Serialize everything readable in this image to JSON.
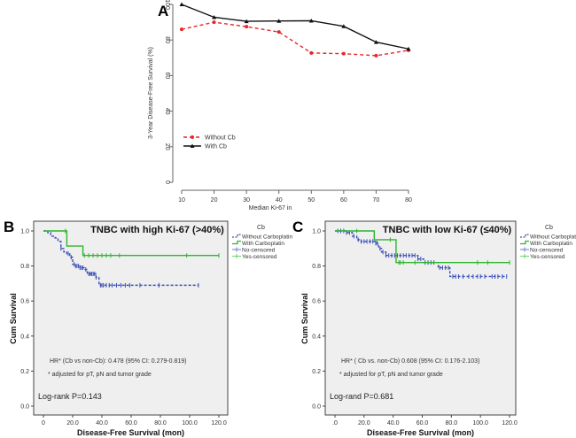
{
  "chart_data": [
    {
      "type": "line",
      "panel": "A",
      "xlabel": "Median Ki-67 in",
      "ylabel": "3-Year Disease-Free Survival (%)",
      "x": [
        10,
        20,
        30,
        40,
        50,
        60,
        70,
        80
      ],
      "xlim": [
        10,
        80
      ],
      "ylim": [
        0,
        100
      ],
      "yticks": [
        0,
        20,
        40,
        60,
        80,
        100
      ],
      "legend": "left-middle",
      "grid": false,
      "series": [
        {
          "name": "Without Cb",
          "color": "#e8262a",
          "style": "dashed",
          "marker": "circle",
          "values": [
            86,
            90,
            87.5,
            84.5,
            72.7,
            72.3,
            71.2,
            74.2
          ]
        },
        {
          "name": "With Cb",
          "color": "#111111",
          "style": "solid",
          "marker": "triangle",
          "values": [
            100,
            92.8,
            90.5,
            90.7,
            90.8,
            87.7,
            78.8,
            75
          ]
        }
      ]
    },
    {
      "type": "line",
      "panel": "B",
      "title": "TNBC with high Ki-67 (>40%)",
      "xlabel": "Disease-Free Survival (mon)",
      "ylabel": "Cum Survival",
      "xlim": [
        0,
        120
      ],
      "ylim": [
        0,
        1
      ],
      "xticks": [
        "0",
        "20.0",
        "40.0",
        "60.0",
        "80.0",
        "100.0",
        "120.0"
      ],
      "yticks": [
        "0.0",
        "0.2",
        "0.4",
        "0.6",
        "0.8",
        "1.0"
      ],
      "legend_title": "Cb",
      "legend": [
        "Without Carboplatin",
        "With Carboplatin",
        "No-censored",
        "Yes-censored"
      ],
      "legend_position": "right",
      "annotations": [
        "HR* (Cb vs non-Cb): 0.478 (95% CI: 0.279-0.819)",
        "* adjusted for pT, pN and tumor grade",
        "Log-rank P=0.143"
      ],
      "series": [
        {
          "name": "Without Carboplatin",
          "color": "#3a4fb8",
          "style": "dashed",
          "steps": [
            [
              0,
              1
            ],
            [
              3,
              0.99
            ],
            [
              5,
              0.97
            ],
            [
              8,
              0.96
            ],
            [
              10,
              0.94
            ],
            [
              12,
              0.9
            ],
            [
              14,
              0.88
            ],
            [
              16,
              0.87
            ],
            [
              18,
              0.85
            ],
            [
              20,
              0.81
            ],
            [
              22,
              0.8
            ],
            [
              25,
              0.79
            ],
            [
              28,
              0.78
            ],
            [
              30,
              0.755
            ],
            [
              36,
              0.735
            ],
            [
              38,
              0.69
            ]
          ],
          "end": 106,
          "censored": [
            12,
            17,
            19,
            21,
            22,
            23,
            24,
            25,
            26,
            27,
            29,
            31,
            32,
            33,
            34,
            35,
            36,
            39,
            40,
            41,
            43,
            45,
            47,
            50,
            53,
            56,
            59,
            66,
            79,
            106
          ]
        },
        {
          "name": "With Carboplatin",
          "color": "#2db52d",
          "style": "solid",
          "steps": [
            [
              0,
              1
            ],
            [
              16,
              0.914
            ],
            [
              27,
              0.86
            ]
          ],
          "end": 120,
          "censored": [
            15,
            28,
            31,
            34,
            37,
            40,
            43,
            46,
            52,
            98,
            120
          ]
        }
      ]
    },
    {
      "type": "line",
      "panel": "C",
      "title": "TNBC with low Ki-67 (≤40%)",
      "xlabel": "Disease-Free Survival (mon)",
      "ylabel": "Cum Survival",
      "xlim": [
        0,
        120
      ],
      "ylim": [
        0,
        1
      ],
      "xticks": [
        ".0",
        "20.0",
        "40.0",
        "60.0",
        "80.0",
        "100.0",
        "120.0"
      ],
      "yticks": [
        "0.0",
        "0.2",
        "0.4",
        "0.6",
        "0.8",
        "1.0"
      ],
      "legend_title": "Cb",
      "legend": [
        "Without Carboplatin",
        "With Carboplatin",
        "No-censored",
        "Yes-censored"
      ],
      "legend_position": "right",
      "annotations": [
        "HR* ( Cb vs. non-Cb) 0.608 (95% CI: 0.176-2.103)",
        "* adjusted for pT, pN and tumor grade",
        "Log-rand P=0.681"
      ],
      "series": [
        {
          "name": "Without Carboplatin",
          "color": "#3a4fb8",
          "style": "dashed",
          "steps": [
            [
              0,
              1
            ],
            [
              8,
              0.99
            ],
            [
              12,
              0.97
            ],
            [
              15,
              0.95
            ],
            [
              18,
              0.94
            ],
            [
              28,
              0.93
            ],
            [
              30,
              0.9
            ],
            [
              32,
              0.88
            ],
            [
              35,
              0.86
            ],
            [
              57,
              0.84
            ],
            [
              61,
              0.82
            ],
            [
              71,
              0.79
            ],
            [
              79,
              0.74
            ]
          ],
          "end": 118,
          "censored": [
            2,
            4,
            6,
            8,
            10,
            13,
            16,
            18,
            20,
            22,
            24,
            26,
            28,
            29,
            31,
            33,
            35,
            37,
            39,
            41,
            43,
            45,
            47,
            49,
            51,
            53,
            55,
            57,
            59,
            62,
            64,
            66,
            68,
            72,
            74,
            76,
            78,
            81,
            83,
            85,
            88,
            92,
            95,
            98,
            100,
            103,
            108,
            110,
            112,
            115,
            118
          ]
        },
        {
          "name": "With Carboplatin",
          "color": "#2db52d",
          "style": "solid",
          "steps": [
            [
              0,
              1
            ],
            [
              27,
              0.95
            ],
            [
              42,
              0.82
            ]
          ],
          "end": 120,
          "censored": [
            15,
            38,
            44,
            45,
            47,
            55,
            98,
            105,
            120
          ]
        }
      ]
    }
  ],
  "panels": {
    "a": "A",
    "b": "B",
    "c": "C"
  }
}
